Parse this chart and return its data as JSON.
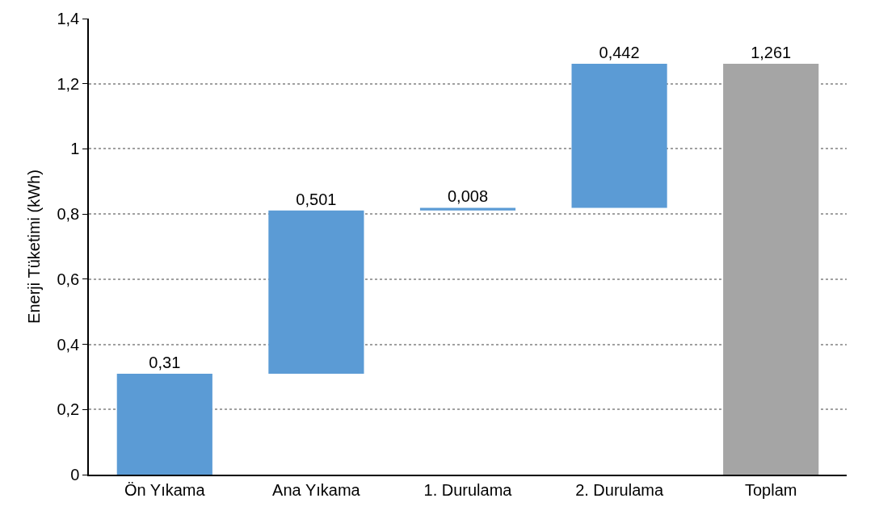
{
  "chart_data": {
    "type": "bar",
    "ylabel": "Enerji Tüketimi (kWh)",
    "categories": [
      "Ön Yıkama",
      "Ana Yıkama",
      "1. Durulama",
      "2. Durulama",
      "Toplam"
    ],
    "values": [
      0.31,
      0.501,
      0.008,
      0.442,
      1.261
    ],
    "base": [
      0,
      0.31,
      0.811,
      0.819,
      0
    ],
    "colors": [
      "#5b9bd5",
      "#5b9bd5",
      "#5b9bd5",
      "#5b9bd5",
      "#a5a5a5"
    ],
    "value_labels": [
      "0,31",
      "0,501",
      "0,008",
      "0,442",
      "1,261"
    ],
    "ylim": [
      0,
      1.4
    ],
    "yticks": [
      0,
      {
        "value": 0.2,
        "label": "0,2"
      },
      {
        "value": 0.4,
        "label": "0,4"
      },
      {
        "value": 0.6,
        "label": "0,6"
      },
      {
        "value": 0.8,
        "label": "0,8"
      },
      1,
      {
        "value": 1.2,
        "label": "1,2"
      },
      {
        "value": 1.4,
        "label": "1,4"
      }
    ],
    "grid": "y"
  }
}
